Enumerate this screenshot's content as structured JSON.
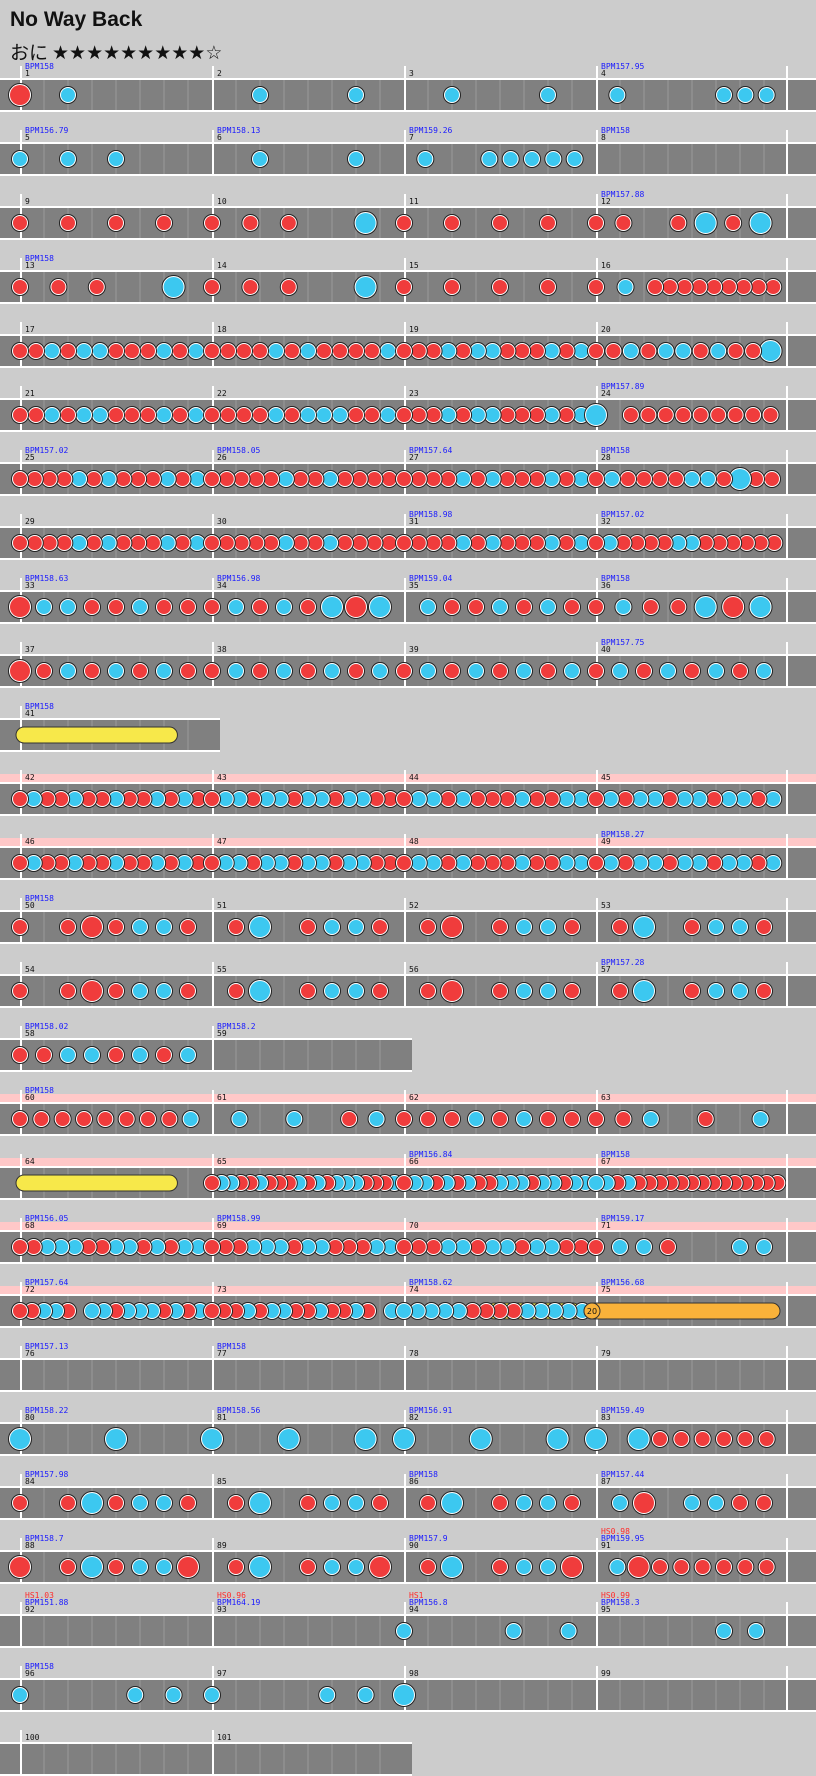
{
  "song": {
    "title": "No Way Back",
    "difficulty_label": "おに",
    "stars_filled": "★★★★★★★★★",
    "stars_empty": "☆",
    "level": 9,
    "level_max": 10
  },
  "legend": {
    "don_color": "#f03c3c",
    "ka_color": "#3cc8f0",
    "roll_color": "#f7e84a",
    "balloon_color": "#f9b23a",
    "gogo_color": "#ffc8c8",
    "lane_color": "#808080",
    "bpm_text_color": "#1a1aff",
    "hs_text_color": "#ff2a2a"
  },
  "rows": [
    {
      "measures": [
        {
          "n": "1",
          "bpm": "BPM158",
          "notes": "Dk"
        },
        {
          "n": "2",
          "notes": "0k0k"
        },
        {
          "n": "3",
          "notes": "0k0k"
        },
        {
          "n": "4",
          "bpm": "BPM157.95",
          "notes": "0k0000kkk"
        }
      ]
    },
    {
      "measures": [
        {
          "n": "5",
          "bpm": "BPM156.79",
          "notes": "kkk0"
        },
        {
          "n": "6",
          "bpm": "BPM158.13",
          "notes": "0k0k"
        },
        {
          "n": "7",
          "bpm": "BPM159.26",
          "notes": "0k00kkkkk"
        },
        {
          "n": "8",
          "bpm": "BPM158",
          "notes": ""
        }
      ]
    },
    {
      "measures": [
        {
          "n": "9",
          "notes": "dddd"
        },
        {
          "n": "10",
          "notes": "ddd0K"
        },
        {
          "n": "11",
          "notes": "dddd"
        },
        {
          "n": "12",
          "bpm": "BPM157.88",
          "notes": "dd0dKdK"
        }
      ]
    },
    {
      "measures": [
        {
          "n": "13",
          "bpm": "BPM158",
          "notes": "ddd0K"
        },
        {
          "n": "14",
          "notes": "ddd0K"
        },
        {
          "n": "15",
          "notes": "dddd"
        },
        {
          "n": "16",
          "notes": "d0k0ddddddddd"
        }
      ]
    },
    {
      "measures": [
        {
          "n": "17",
          "notes": "ddkdkkdddkdk"
        },
        {
          "n": "18",
          "notes": "ddddkdkddddk"
        },
        {
          "n": "19",
          "notes": "dddkdkkdddkdk"
        },
        {
          "n": "20",
          "notes": "ddkdkkdkddK"
        }
      ]
    },
    {
      "measures": [
        {
          "n": "21",
          "notes": "ddkdkkdddkdk"
        },
        {
          "n": "22",
          "notes": "ddddkdkkkddk"
        },
        {
          "n": "23",
          "notes": "dddkdkkdddkdk"
        },
        {
          "n": "24",
          "bpm": "BPM157.89",
          "notes": "K0ddddddddd"
        }
      ]
    },
    {
      "measures": [
        {
          "n": "25",
          "bpm": "BPM157.02",
          "notes": "ddddkdkdddkdk"
        },
        {
          "n": "26",
          "bpm": "BPM158.05",
          "notes": "dddddkddkdddd"
        },
        {
          "n": "27",
          "bpm": "BPM157.64",
          "notes": "ddddkdkdddkdk"
        },
        {
          "n": "28",
          "bpm": "BPM158",
          "notes": "dkddddkkdKdd"
        }
      ]
    },
    {
      "measures": [
        {
          "n": "29",
          "notes": "ddddkdkdddkdk"
        },
        {
          "n": "30",
          "notes": "dddddkddkdddd"
        },
        {
          "n": "31",
          "bpm": "BPM158.98",
          "notes": "ddddkdkdddkdk"
        },
        {
          "n": "32",
          "bpm": "BPM157.02",
          "notes": "dkddddkkdddddd"
        }
      ]
    },
    {
      "measures": [
        {
          "n": "33",
          "bpm": "BPM158.63",
          "notes": "Dkkddkdd"
        },
        {
          "n": "34",
          "bpm": "BPM156.98",
          "notes": "dkdkdKDK"
        },
        {
          "n": "35",
          "bpm": "BPM159.04",
          "notes": "0kddkdkd"
        },
        {
          "n": "36",
          "bpm": "BPM158",
          "notes": "dkddKDK"
        }
      ]
    },
    {
      "measures": [
        {
          "n": "37",
          "notes": "Ddkdkdkd"
        },
        {
          "n": "38",
          "notes": "dkdkdkdk"
        },
        {
          "n": "39",
          "notes": "dkdkdkdk"
        },
        {
          "n": "40",
          "bpm": "BPM157.75",
          "notes": "dkdkdkdk"
        }
      ]
    },
    {
      "short": true,
      "measures": [
        {
          "n": "41",
          "bpm": "BPM158",
          "roll": [
            0.0,
            0.82
          ],
          "notes": ""
        }
      ]
    },
    {
      "gogo": true,
      "measures": [
        {
          "n": "42",
          "notes": "dkddkddkddkdkd"
        },
        {
          "n": "43",
          "notes": "dkkdkkdkkdkkdd"
        },
        {
          "n": "44",
          "notes": "dkkdkdddkddkk"
        },
        {
          "n": "45",
          "notes": "dkdkkdkkdkkdk"
        }
      ]
    },
    {
      "gogo": true,
      "measures": [
        {
          "n": "46",
          "notes": "dkddkddkddkdkd"
        },
        {
          "n": "47",
          "notes": "dkkdkkdkkdkkdd"
        },
        {
          "n": "48",
          "notes": "dkkdkdddkddkk"
        },
        {
          "n": "49",
          "bpm": "BPM158.27",
          "notes": "dkdkkdkkdkkdk"
        }
      ]
    },
    {
      "measures": [
        {
          "n": "50",
          "bpm": "BPM158",
          "notes": "d0dDdkkd"
        },
        {
          "n": "51",
          "notes": "0dK0dkkd"
        },
        {
          "n": "52",
          "notes": "0dD0dkkd"
        },
        {
          "n": "53",
          "notes": "0dK0dkkd"
        }
      ]
    },
    {
      "measures": [
        {
          "n": "54",
          "notes": "d0dDdkkd"
        },
        {
          "n": "55",
          "notes": "0dK0dkkd"
        },
        {
          "n": "56",
          "notes": "0dD0dkkd"
        },
        {
          "n": "57",
          "bpm": "BPM157.28",
          "notes": "0dK0dkkd"
        }
      ]
    },
    {
      "half": true,
      "measures": [
        {
          "n": "58",
          "bpm": "BPM158.02",
          "notes": "ddkkdkdk"
        },
        {
          "n": "59",
          "bpm": "BPM158.2",
          "notes": ""
        }
      ]
    },
    {
      "gogo": true,
      "measures": [
        {
          "n": "60",
          "bpm": "BPM158",
          "notes": "ddddddddk"
        },
        {
          "n": "61",
          "notes": "0k0k0dk"
        },
        {
          "n": "62",
          "notes": "dddkdkdd"
        },
        {
          "n": "63",
          "notes": "ddk0d0k"
        }
      ]
    },
    {
      "gogo": true,
      "measures": [
        {
          "n": "64",
          "roll": [
            0.0,
            0.82
          ],
          "notes": ""
        },
        {
          "n": "65",
          "notes": "dkkddkdddkdkdkkkdddk"
        },
        {
          "n": "66",
          "bpm": "BPM156.84",
          "notes": "dkkdkdkddkkkdkkdkk"
        },
        {
          "n": "67",
          "bpm": "BPM158",
          "notes": "kkdkdddddddddddddd"
        }
      ]
    },
    {
      "gogo": true,
      "measures": [
        {
          "n": "68",
          "bpm": "BPM156.05",
          "notes": "ddkkkddkkdkdkk"
        },
        {
          "n": "69",
          "bpm": "BPM158.99",
          "notes": "dddkkkdkkdddkk"
        },
        {
          "n": "70",
          "notes": "dddkkdkkdkkdd"
        },
        {
          "n": "71",
          "bpm": "BPM159.17",
          "notes": "dkkd00kk"
        }
      ]
    },
    {
      "gogo": true,
      "measures": [
        {
          "n": "72",
          "bpm": "BPM157.64",
          "notes": "ddkkd0kkdkkkdkdk"
        },
        {
          "n": "73",
          "notes": "dddkdkkddkddkd0k"
        },
        {
          "n": "74",
          "bpm": "BPM158.62",
          "notes": "kkkkkddddkkkkk",
          "roll": [
            0.45,
            0.92
          ]
        },
        {
          "n": "75",
          "bpm": "BPM156.68",
          "balloon": "20",
          "notes": ""
        }
      ]
    },
    {
      "measures": [
        {
          "n": "76",
          "bpm": "BPM157.13",
          "notes": ""
        },
        {
          "n": "77",
          "bpm": "BPM158",
          "notes": ""
        },
        {
          "n": "78",
          "notes": ""
        },
        {
          "n": "79",
          "notes": ""
        }
      ]
    },
    {
      "measures": [
        {
          "n": "80",
          "bpm": "BPM158.22",
          "notes": "K0K0"
        },
        {
          "n": "81",
          "bpm": "BPM158.56",
          "notes": "K0K0K"
        },
        {
          "n": "82",
          "bpm": "BPM156.91",
          "notes": "K0K0K"
        },
        {
          "n": "83",
          "bpm": "BPM159.49",
          "notes": "K0Kdddddd"
        }
      ]
    },
    {
      "measures": [
        {
          "n": "84",
          "bpm": "BPM157.98",
          "notes": "d0dKdkkd"
        },
        {
          "n": "85",
          "notes": "0dK0dkkd"
        },
        {
          "n": "86",
          "bpm": "BPM158",
          "notes": "0dK0dkkd"
        },
        {
          "n": "87",
          "bpm": "BPM157.44",
          "notes": "0kD0kkdd"
        }
      ]
    },
    {
      "measures": [
        {
          "n": "88",
          "bpm": "BPM158.7",
          "notes": "D0dKdkkD"
        },
        {
          "n": "89",
          "notes": "0dK0dkkD"
        },
        {
          "n": "90",
          "bpm": "BPM157.9",
          "notes": "0dK0dkkD"
        },
        {
          "n": "91",
          "bpm": "BPM159.95",
          "hs": "HS0.98",
          "notes": "0kDdddddd"
        }
      ]
    },
    {
      "measures": [
        {
          "n": "92",
          "bpm": "BPM151.88",
          "hs": "HS1.03",
          "notes": ""
        },
        {
          "n": "93",
          "bpm": "BPM164.19",
          "hs": "HS0.96",
          "notes": ""
        },
        {
          "n": "94",
          "bpm": "BPM156.8",
          "hs": "HS1",
          "notes": "k000k0k"
        },
        {
          "n": "95",
          "bpm": "BPM158.3",
          "hs": "HS0.99",
          "notes": "0000kk"
        }
      ]
    },
    {
      "measures": [
        {
          "n": "96",
          "bpm": "BPM158",
          "notes": "k00kk"
        },
        {
          "n": "97",
          "notes": "k00kk"
        },
        {
          "n": "98",
          "notes": "K"
        },
        {
          "n": "99",
          "notes": ""
        }
      ]
    },
    {
      "half": true,
      "measures": [
        {
          "n": "100",
          "notes": ""
        },
        {
          "n": "101",
          "notes": ""
        }
      ]
    }
  ]
}
